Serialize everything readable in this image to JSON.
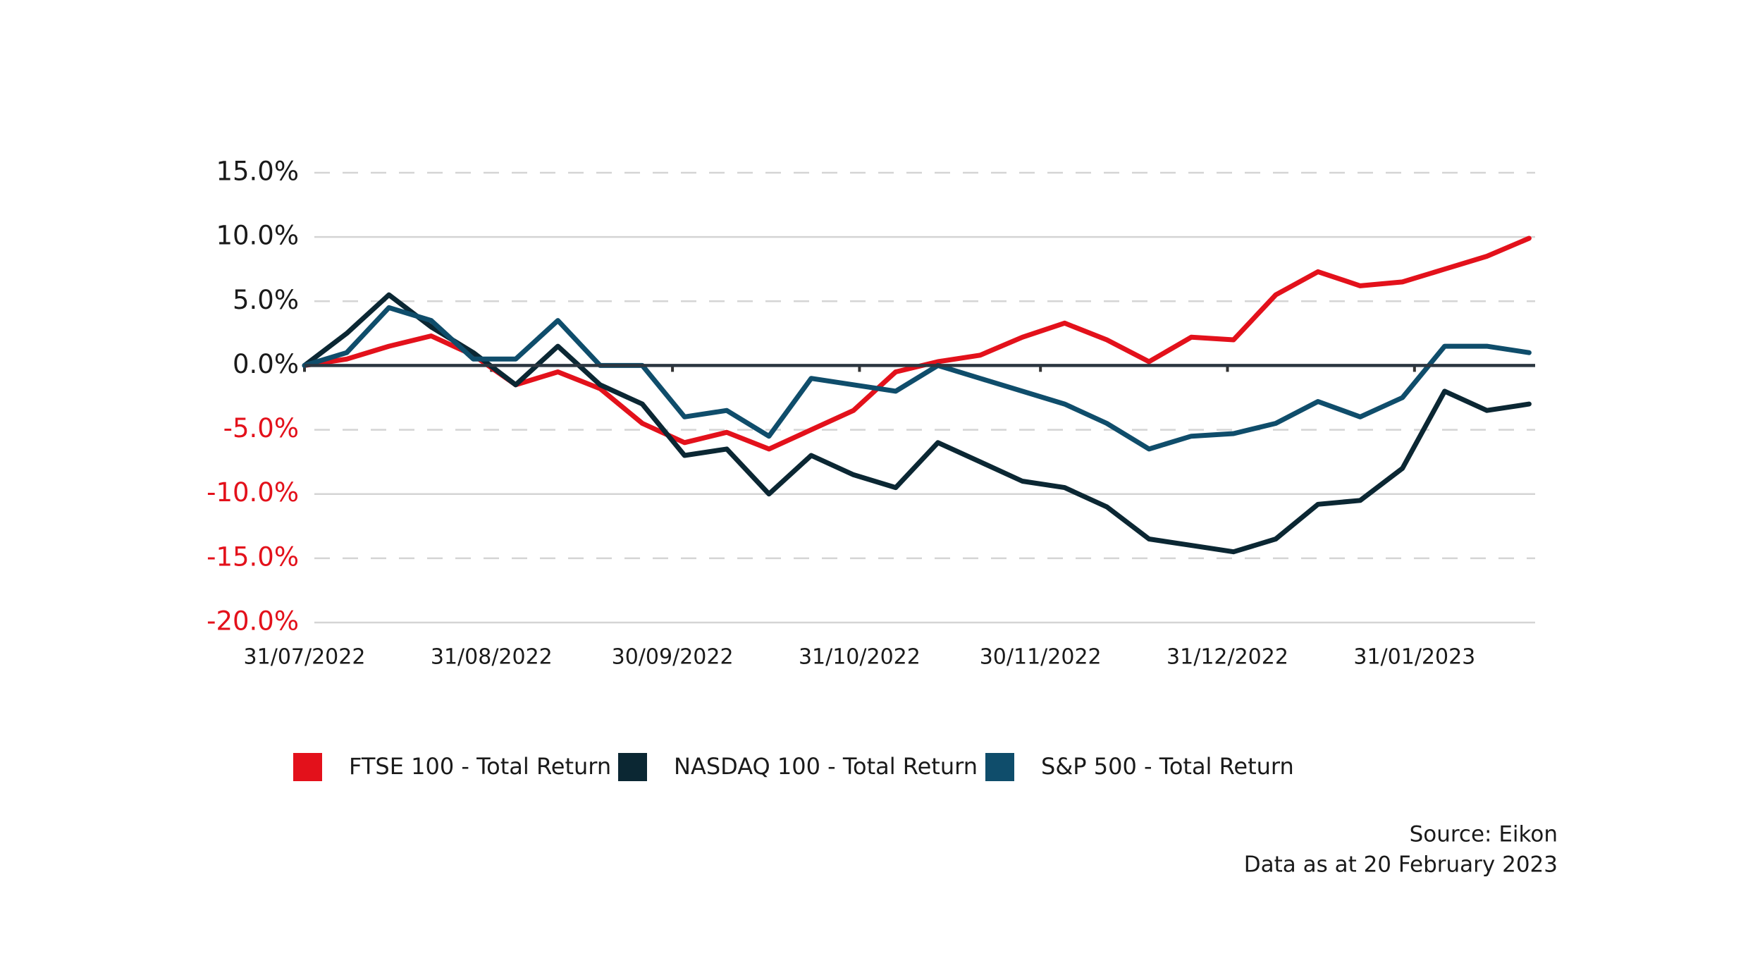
{
  "chart_data": {
    "type": "line",
    "x": [
      "2022-07-31",
      "2022-08-07",
      "2022-08-14",
      "2022-08-21",
      "2022-08-28",
      "2022-09-04",
      "2022-09-11",
      "2022-09-18",
      "2022-09-25",
      "2022-10-02",
      "2022-10-09",
      "2022-10-16",
      "2022-10-23",
      "2022-10-30",
      "2022-11-06",
      "2022-11-13",
      "2022-11-20",
      "2022-11-27",
      "2022-12-04",
      "2022-12-11",
      "2022-12-18",
      "2022-12-25",
      "2023-01-01",
      "2023-01-08",
      "2023-01-15",
      "2023-01-22",
      "2023-01-29",
      "2023-02-05",
      "2023-02-12",
      "2023-02-19"
    ],
    "series": [
      {
        "name": "FTSE 100 - Total Return",
        "color": "#e3111b",
        "values": [
          0,
          0.5,
          1.5,
          2.3,
          0.8,
          -1.5,
          -0.5,
          -1.8,
          -4.5,
          -6,
          -5.2,
          -6.5,
          -5,
          -3.5,
          -0.5,
          0.3,
          0.8,
          2.2,
          3.3,
          2,
          0.3,
          2.2,
          2,
          5.5,
          7.3,
          6.2,
          6.5,
          7.5,
          8.5,
          9.9
        ]
      },
      {
        "name": "NASDAQ 100 - Total Return",
        "color": "#0b2733",
        "values": [
          0,
          2.5,
          5.5,
          3,
          1,
          -1.5,
          1.5,
          -1.5,
          -3,
          -7,
          -6.5,
          -10,
          -7,
          -8.5,
          -9.5,
          -6,
          -7.5,
          -9,
          -9.5,
          -11,
          -13.5,
          -14,
          -14.5,
          -13.5,
          -10.8,
          -10.5,
          -8,
          -2,
          -3.5,
          -3
        ]
      },
      {
        "name": "S&P 500 - Total Return",
        "color": "#0f4d6b",
        "values": [
          0,
          1,
          4.5,
          3.5,
          0.5,
          0.5,
          3.5,
          0,
          0,
          -4,
          -3.5,
          -5.5,
          -1,
          -1.5,
          -2,
          0,
          -1,
          -2,
          -3,
          -4.5,
          -6.5,
          -5.5,
          -5.3,
          -4.5,
          -2.8,
          -4,
          -2.5,
          1.5,
          1.5,
          1
        ]
      }
    ],
    "xlim": [
      "2022-07-31",
      "2023-02-20"
    ],
    "xticks": [
      {
        "value": "2022-07-31",
        "label": "31/07/2022"
      },
      {
        "value": "2022-08-31",
        "label": "31/08/2022"
      },
      {
        "value": "2022-09-30",
        "label": "30/09/2022"
      },
      {
        "value": "2022-10-31",
        "label": "31/10/2022"
      },
      {
        "value": "2022-11-30",
        "label": "30/11/2022"
      },
      {
        "value": "2022-12-31",
        "label": "31/12/2022"
      },
      {
        "value": "2023-01-31",
        "label": "31/01/2023"
      }
    ],
    "ylim": [
      -20,
      15
    ],
    "yticks": [
      {
        "value": 15,
        "label": "15.0%"
      },
      {
        "value": 10,
        "label": "10.0%"
      },
      {
        "value": 5,
        "label": "5.0%"
      },
      {
        "value": 0,
        "label": "0.0%"
      },
      {
        "value": -5,
        "label": "-5.0%"
      },
      {
        "value": -10,
        "label": "-10.0%"
      },
      {
        "value": -15,
        "label": "-15.0%"
      },
      {
        "value": -20,
        "label": "-20.0%"
      }
    ],
    "grid": true,
    "legend": "bottom",
    "source": "Source: Eikon",
    "note": "Data as at 20 February 2023"
  }
}
